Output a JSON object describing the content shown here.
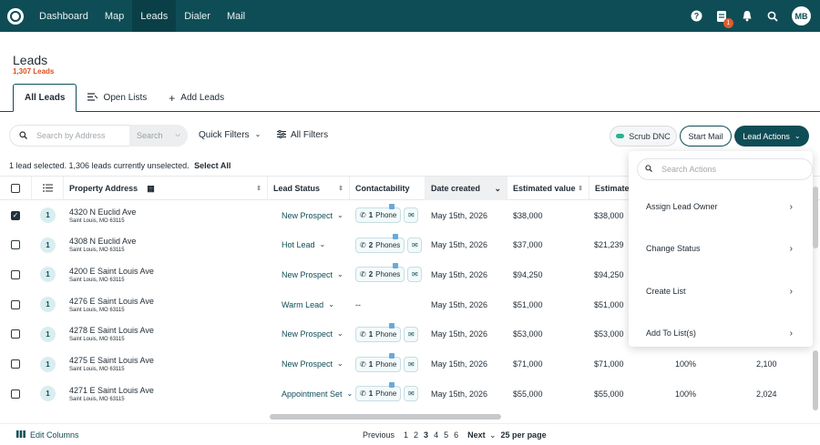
{
  "nav": {
    "items": [
      "Dashboard",
      "Map",
      "Leads",
      "Dialer",
      "Mail"
    ],
    "active": "Leads",
    "notification_badge": "1",
    "avatar_initials": "MB"
  },
  "header": {
    "title": "Leads",
    "count": "1,307 Leads"
  },
  "tabs": [
    {
      "label": "All Leads",
      "icon": ""
    },
    {
      "label": "Open Lists",
      "icon": "list-icon"
    },
    {
      "label": "Add Leads",
      "icon": "plus-icon"
    }
  ],
  "toolbar": {
    "search_placeholder": "Search by Address",
    "search_button": "Search",
    "quick_filters": "Quick Filters",
    "all_filters": "All Filters",
    "scrub_dnc": "Scrub DNC",
    "start_mail": "Start Mail",
    "lead_actions": "Lead Actions"
  },
  "selection": {
    "text": "1 lead selected. 1,306 leads currently unselected.",
    "select_all": "Select All"
  },
  "table": {
    "headers": [
      "Property Address",
      "Lead Status",
      "Contactability",
      "Date created",
      "Estimated value",
      "Estimated"
    ],
    "rows": [
      {
        "checked": true,
        "num": "1",
        "addr": "4320 N Euclid Ave",
        "city": "Saint Louis, MO 63115",
        "status": "New Prospect",
        "phones": "1",
        "phone_label": "Phone",
        "date": "May 15th, 2026",
        "value": "$38,000",
        "est": "$38,000",
        "pct": "",
        "sqft": ""
      },
      {
        "checked": false,
        "num": "1",
        "addr": "4308 N Euclid Ave",
        "city": "Saint Louis, MO 63115",
        "status": "Hot Lead",
        "phones": "2",
        "phone_label": "Phones",
        "date": "May 15th, 2026",
        "value": "$37,000",
        "est": "$21,239",
        "pct": "",
        "sqft": ""
      },
      {
        "checked": false,
        "num": "1",
        "addr": "4200 E Saint Louis Ave",
        "city": "Saint Louis, MO 63115",
        "status": "New Prospect",
        "phones": "2",
        "phone_label": "Phones",
        "date": "May 15th, 2026",
        "value": "$94,250",
        "est": "$94,250",
        "pct": "",
        "sqft": ""
      },
      {
        "checked": false,
        "num": "1",
        "addr": "4276 E Saint Louis Ave",
        "city": "Saint Louis, MO 63115",
        "status": "Warm Lead",
        "phones": "",
        "phone_label": "--",
        "date": "May 15th, 2026",
        "value": "$51,000",
        "est": "$51,000",
        "pct": "",
        "sqft": ""
      },
      {
        "checked": false,
        "num": "1",
        "addr": "4278 E Saint Louis Ave",
        "city": "Saint Louis, MO 63115",
        "status": "New Prospect",
        "phones": "1",
        "phone_label": "Phone",
        "date": "May 15th, 2026",
        "value": "$53,000",
        "est": "$53,000",
        "pct": "",
        "sqft": ""
      },
      {
        "checked": false,
        "num": "1",
        "addr": "4275 E Saint Louis Ave",
        "city": "Saint Louis, MO 63115",
        "status": "New Prospect",
        "phones": "1",
        "phone_label": "Phone",
        "date": "May 15th, 2026",
        "value": "$71,000",
        "est": "$71,000",
        "pct": "100%",
        "sqft": "2,100"
      },
      {
        "checked": false,
        "num": "1",
        "addr": "4271 E Saint Louis Ave",
        "city": "Saint Louis, MO 63115",
        "status": "Appointment Set",
        "phones": "1",
        "phone_label": "Phone",
        "date": "May 15th, 2026",
        "value": "$55,000",
        "est": "$55,000",
        "pct": "100%",
        "sqft": "2,024"
      }
    ]
  },
  "dropdown": {
    "search_placeholder": "Search Actions",
    "items": [
      "Assign Lead Owner",
      "Change Status",
      "Create List",
      "Add To List(s)"
    ]
  },
  "footer": {
    "edit_columns": "Edit Columns",
    "previous": "Previous",
    "pages": [
      "1",
      "2",
      "3",
      "4",
      "5",
      "6"
    ],
    "current_page": "3",
    "next": "Next",
    "per_page": "25 per page"
  },
  "colors": {
    "brand": "#0f4d56",
    "accent": "#d9501f",
    "toggle": "#27b38e"
  }
}
